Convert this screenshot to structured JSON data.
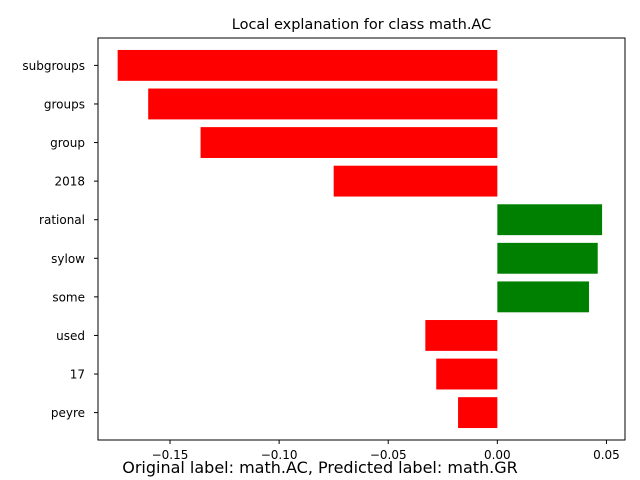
{
  "chart_data": {
    "type": "bar",
    "orientation": "horizontal",
    "title": "Local explanation for class math.AC",
    "categories": [
      "subgroups",
      "groups",
      "group",
      "2018",
      "rational",
      "sylow",
      "some",
      "used",
      "17",
      "peyre"
    ],
    "values": [
      -0.174,
      -0.16,
      -0.136,
      -0.075,
      0.048,
      0.046,
      0.042,
      -0.033,
      -0.028,
      -0.018
    ],
    "xlim": [
      -0.183,
      0.0585
    ],
    "xticks": [
      -0.15,
      -0.1,
      -0.05,
      0.0,
      0.05
    ],
    "xtick_labels": [
      "−0.15",
      "−0.10",
      "−0.05",
      "0.00",
      "0.05"
    ],
    "colors": {
      "positive": "#008000",
      "negative": "#ff0000"
    },
    "grid": false
  },
  "caption": "Original label: math.AC, Predicted label: math.GR"
}
